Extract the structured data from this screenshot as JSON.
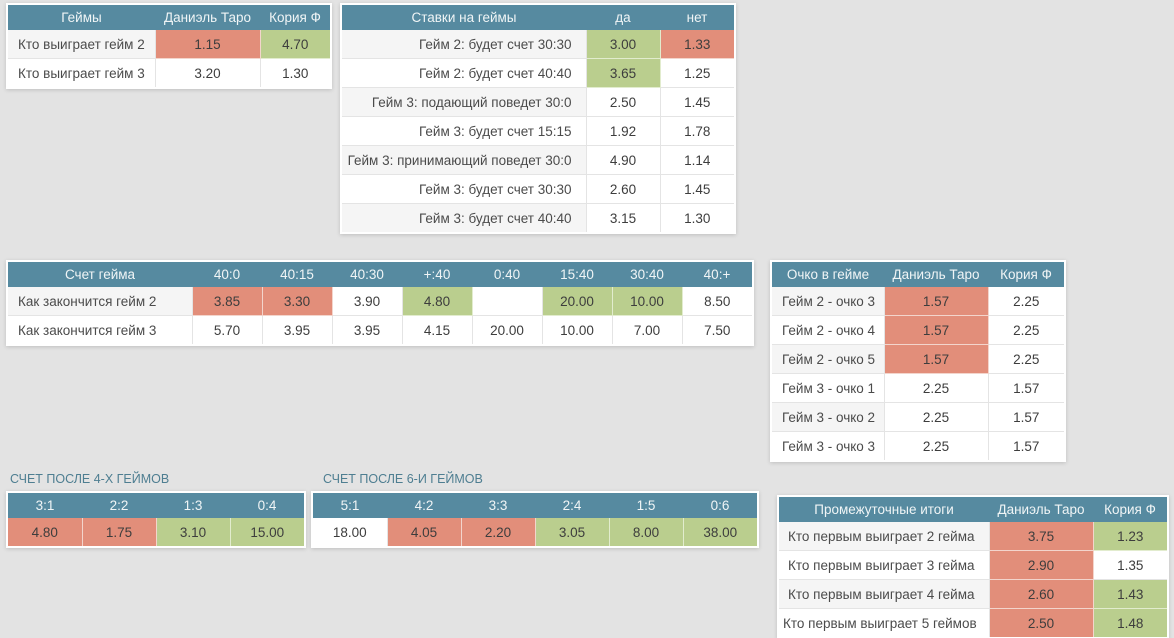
{
  "players": {
    "p1": "Даниэль Таро",
    "p2": "Кория Ф"
  },
  "colors": {
    "header_bg": "#568aa0",
    "odds_red": "#e28e7a",
    "odds_green": "#bace8e",
    "page_bg": "#e3e3e3",
    "stripe": "#f5f5f5",
    "title_color": "#4e7e91"
  },
  "section_titles": {
    "after4": "СЧЕТ ПОСЛЕ 4-Х ГЕЙМОВ",
    "after6": "СЧЕТ ПОСЛЕ 6-И ГЕЙМОВ"
  },
  "tables": {
    "games": {
      "title_col": "Геймы",
      "columns": [
        "Даниэль Таро",
        "Кория Ф"
      ],
      "rows": [
        {
          "label": "Кто выиграет гейм 2",
          "cells": [
            {
              "v": "1.15",
              "c": "red"
            },
            {
              "v": "4.70",
              "c": "green"
            }
          ]
        },
        {
          "label": "Кто выиграет гейм 3",
          "cells": [
            {
              "v": "3.20"
            },
            {
              "v": "1.30"
            }
          ]
        }
      ]
    },
    "game_bets": {
      "title_col": "Ставки на геймы",
      "columns": [
        "да",
        "нет"
      ],
      "rows": [
        {
          "label": "Гейм 2: будет счет 30:30",
          "cells": [
            {
              "v": "3.00",
              "c": "green"
            },
            {
              "v": "1.33",
              "c": "red"
            }
          ]
        },
        {
          "label": "Гейм 2: будет счет 40:40",
          "cells": [
            {
              "v": "3.65",
              "c": "green"
            },
            {
              "v": "1.25"
            }
          ]
        },
        {
          "label": "Гейм 3: подающий поведет 30:0",
          "cells": [
            {
              "v": "2.50"
            },
            {
              "v": "1.45"
            }
          ]
        },
        {
          "label": "Гейм 3: будет счет 15:15",
          "cells": [
            {
              "v": "1.92"
            },
            {
              "v": "1.78"
            }
          ]
        },
        {
          "label": "Гейм 3: принимающий поведет 30:0",
          "cells": [
            {
              "v": "4.90"
            },
            {
              "v": "1.14"
            }
          ]
        },
        {
          "label": "Гейм 3: будет счет 30:30",
          "cells": [
            {
              "v": "2.60"
            },
            {
              "v": "1.45"
            }
          ]
        },
        {
          "label": "Гейм 3: будет счет 40:40",
          "cells": [
            {
              "v": "3.15"
            },
            {
              "v": "1.30"
            }
          ]
        }
      ]
    },
    "game_score": {
      "title_col": "Счет гейма",
      "columns": [
        "40:0",
        "40:15",
        "40:30",
        "+:40",
        "0:40",
        "15:40",
        "30:40",
        "40:+"
      ],
      "rows": [
        {
          "label": "Как закончится гейм 2",
          "cells": [
            {
              "v": "3.85",
              "c": "red"
            },
            {
              "v": "3.30",
              "c": "red"
            },
            {
              "v": "3.90"
            },
            {
              "v": "4.80",
              "c": "green"
            },
            {
              "v": ""
            },
            {
              "v": "20.00",
              "c": "green"
            },
            {
              "v": "10.00",
              "c": "green"
            },
            {
              "v": "8.50"
            }
          ]
        },
        {
          "label": "Как закончится гейм 3",
          "cells": [
            {
              "v": "5.70"
            },
            {
              "v": "3.95"
            },
            {
              "v": "3.95"
            },
            {
              "v": "4.15"
            },
            {
              "v": "20.00"
            },
            {
              "v": "10.00"
            },
            {
              "v": "7.00"
            },
            {
              "v": "7.50"
            }
          ]
        }
      ]
    },
    "point_in_game": {
      "title_col": "Очко в гейме",
      "columns": [
        "Даниэль Таро",
        "Кория Ф"
      ],
      "rows": [
        {
          "label": "Гейм 2 - очко 3",
          "cells": [
            {
              "v": "1.57",
              "c": "red"
            },
            {
              "v": "2.25"
            }
          ]
        },
        {
          "label": "Гейм 2 - очко 4",
          "cells": [
            {
              "v": "1.57",
              "c": "red"
            },
            {
              "v": "2.25"
            }
          ]
        },
        {
          "label": "Гейм 2 - очко 5",
          "cells": [
            {
              "v": "1.57",
              "c": "red"
            },
            {
              "v": "2.25"
            }
          ]
        },
        {
          "label": "Гейм 3 - очко 1",
          "cells": [
            {
              "v": "2.25"
            },
            {
              "v": "1.57"
            }
          ]
        },
        {
          "label": "Гейм 3 - очко 2",
          "cells": [
            {
              "v": "2.25"
            },
            {
              "v": "1.57"
            }
          ]
        },
        {
          "label": "Гейм 3 - очко 3",
          "cells": [
            {
              "v": "2.25"
            },
            {
              "v": "1.57"
            }
          ]
        }
      ]
    },
    "after4": {
      "columns": [
        "3:1",
        "2:2",
        "1:3",
        "0:4"
      ],
      "rows": [
        {
          "cells": [
            {
              "v": "4.80",
              "c": "red"
            },
            {
              "v": "1.75",
              "c": "red"
            },
            {
              "v": "3.10",
              "c": "green"
            },
            {
              "v": "15.00",
              "c": "green"
            }
          ]
        }
      ]
    },
    "after6": {
      "columns": [
        "5:1",
        "4:2",
        "3:3",
        "2:4",
        "1:5",
        "0:6"
      ],
      "rows": [
        {
          "cells": [
            {
              "v": "18.00"
            },
            {
              "v": "4.05",
              "c": "red"
            },
            {
              "v": "2.20",
              "c": "red"
            },
            {
              "v": "3.05",
              "c": "green"
            },
            {
              "v": "8.00",
              "c": "green"
            },
            {
              "v": "38.00",
              "c": "green"
            }
          ]
        }
      ]
    },
    "interim": {
      "title_col": "Промежуточные итоги",
      "columns": [
        "Даниэль Таро",
        "Кория Ф"
      ],
      "rows": [
        {
          "label": "Кто первым выиграет 2 гейма",
          "cells": [
            {
              "v": "3.75",
              "c": "red"
            },
            {
              "v": "1.23",
              "c": "green"
            }
          ]
        },
        {
          "label": "Кто первым выиграет 3 гейма",
          "cells": [
            {
              "v": "2.90",
              "c": "red"
            },
            {
              "v": "1.35"
            }
          ]
        },
        {
          "label": "Кто первым выиграет 4 гейма",
          "cells": [
            {
              "v": "2.60",
              "c": "red"
            },
            {
              "v": "1.43",
              "c": "green"
            }
          ]
        },
        {
          "label": "Кто первым выиграет 5 геймов",
          "cells": [
            {
              "v": "2.50",
              "c": "red"
            },
            {
              "v": "1.48",
              "c": "green"
            }
          ]
        }
      ]
    }
  }
}
